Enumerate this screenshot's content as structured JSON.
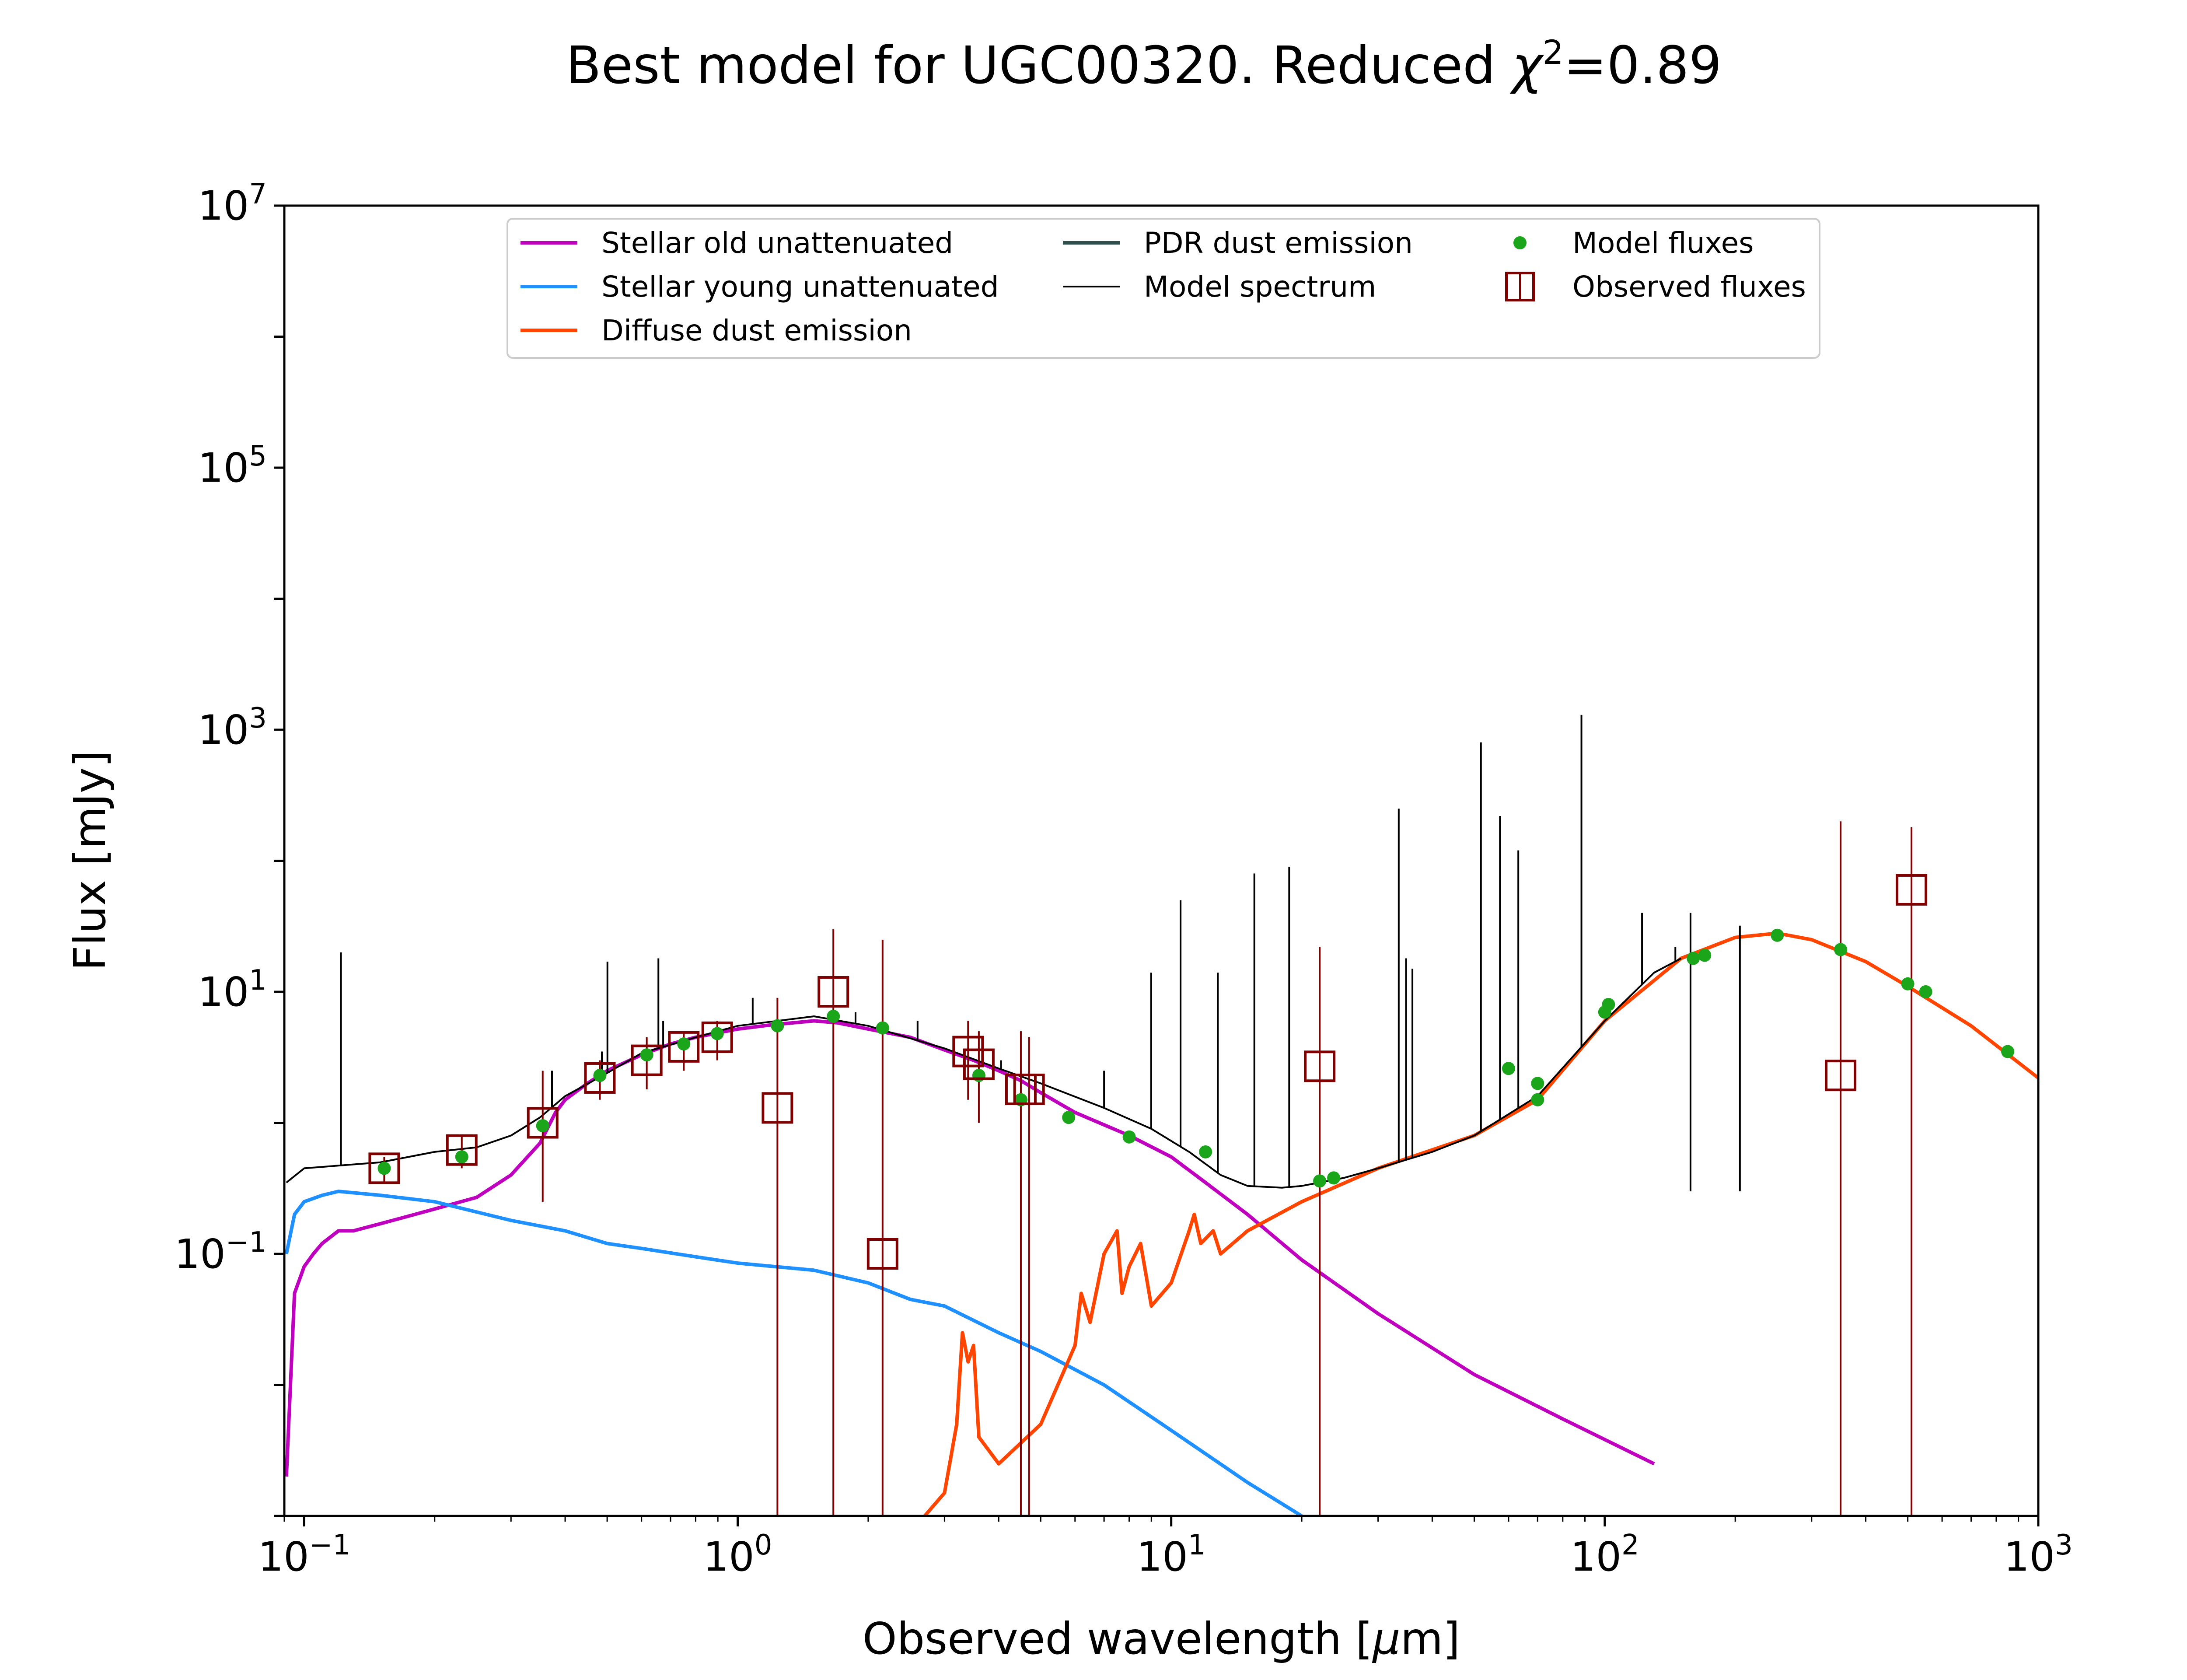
{
  "chart_data": {
    "type": "line",
    "title": "Best model for UGC00320. Reduced χ²=0.89",
    "title_parts": {
      "main": "Best model for UGC00320. Reduced ",
      "chi": "χ",
      "sup": "2",
      "tail": "=0.89"
    },
    "xlabel": "Observed wavelength [μm]",
    "xlabel_parts": {
      "pre": "Observed wavelength [",
      "mu": "μ",
      "post": "m]"
    },
    "ylabel": "Flux [mJy]",
    "xscale": "log",
    "yscale": "log",
    "xlim": [
      0.09,
      1000
    ],
    "ylim": [
      0.001,
      10000000
    ],
    "x_ticks": [
      {
        "base": "10",
        "exp": "−1",
        "value": 0.1
      },
      {
        "base": "10",
        "exp": "0",
        "value": 1
      },
      {
        "base": "10",
        "exp": "1",
        "value": 10
      },
      {
        "base": "10",
        "exp": "2",
        "value": 100
      },
      {
        "base": "10",
        "exp": "3",
        "value": 1000
      }
    ],
    "y_ticks": [
      {
        "base": "10",
        "exp": "−1",
        "value": 0.1
      },
      {
        "base": "10",
        "exp": "1",
        "value": 10
      },
      {
        "base": "10",
        "exp": "3",
        "value": 1000
      },
      {
        "base": "10",
        "exp": "5",
        "value": 100000
      },
      {
        "base": "10",
        "exp": "7",
        "value": 10000000
      }
    ],
    "legend_position": "top-center",
    "legend": [
      {
        "label": "Stellar old unattenuated",
        "color": "#bf00bf",
        "kind": "line"
      },
      {
        "label": "Stellar young unattenuated",
        "color": "#1e90ff",
        "kind": "line"
      },
      {
        "label": "Diffuse dust emission",
        "color": "#ff4500",
        "kind": "line"
      },
      {
        "label": "PDR dust emission",
        "color": "#2f4f4f",
        "kind": "line"
      },
      {
        "label": "Model spectrum",
        "color": "#000000",
        "kind": "thin-line"
      },
      {
        "label": "Model fluxes",
        "color": "#1aa51a",
        "kind": "dot"
      },
      {
        "label": "Observed fluxes",
        "color": "#800000",
        "kind": "square"
      }
    ],
    "series": [
      {
        "name": "Stellar old unattenuated",
        "color": "#bf00bf",
        "x": [
          0.091,
          0.095,
          0.1,
          0.105,
          0.11,
          0.12,
          0.13,
          0.15,
          0.18,
          0.2,
          0.25,
          0.3,
          0.35,
          0.38,
          0.4,
          0.45,
          0.5,
          0.6,
          0.7,
          0.8,
          1.0,
          1.2,
          1.5,
          1.7,
          2.0,
          2.5,
          3.0,
          3.5,
          4.0,
          4.5,
          5.0,
          6.0,
          8.0,
          10.0,
          12.0,
          15.0,
          20.0,
          30.0,
          50.0,
          80.0,
          130.0
        ],
        "y": [
          0.002,
          0.05,
          0.08,
          0.1,
          0.12,
          0.15,
          0.15,
          0.17,
          0.2,
          0.22,
          0.27,
          0.4,
          0.7,
          1.2,
          1.5,
          2.0,
          2.5,
          3.3,
          4.0,
          4.5,
          5.2,
          5.6,
          6.0,
          5.8,
          5.2,
          4.5,
          3.6,
          3.0,
          2.5,
          2.1,
          1.7,
          1.2,
          0.8,
          0.55,
          0.35,
          0.2,
          0.09,
          0.035,
          0.012,
          0.0055,
          0.0025
        ]
      },
      {
        "name": "Stellar young unattenuated",
        "color": "#1e90ff",
        "x": [
          0.091,
          0.095,
          0.1,
          0.11,
          0.12,
          0.15,
          0.2,
          0.3,
          0.4,
          0.5,
          0.6,
          0.8,
          1.0,
          1.5,
          2.0,
          2.5,
          3.0,
          4.0,
          5.0,
          7.0,
          10.0,
          15.0,
          20.0
        ],
        "y": [
          0.1,
          0.2,
          0.25,
          0.28,
          0.3,
          0.28,
          0.25,
          0.18,
          0.15,
          0.12,
          0.11,
          0.095,
          0.085,
          0.075,
          0.06,
          0.045,
          0.04,
          0.025,
          0.018,
          0.01,
          0.0045,
          0.0018,
          0.001
        ]
      },
      {
        "name": "Diffuse dust emission",
        "color": "#ff4500",
        "x": [
          2.7,
          3.0,
          3.2,
          3.3,
          3.4,
          3.5,
          3.6,
          4.0,
          5.0,
          6.0,
          6.2,
          6.5,
          7.0,
          7.5,
          7.7,
          8.0,
          8.5,
          9.0,
          10.0,
          11.0,
          11.3,
          11.7,
          12.5,
          13.0,
          15.0,
          20.0,
          30.0,
          50.0,
          70.0,
          100.0,
          150.0,
          200.0,
          250.0,
          300.0,
          400.0,
          500.0,
          700.0,
          1000.0
        ],
        "y": [
          0.001,
          0.0015,
          0.005,
          0.025,
          0.015,
          0.02,
          0.004,
          0.0025,
          0.005,
          0.02,
          0.05,
          0.03,
          0.1,
          0.15,
          0.05,
          0.08,
          0.12,
          0.04,
          0.06,
          0.15,
          0.2,
          0.12,
          0.15,
          0.1,
          0.15,
          0.25,
          0.45,
          0.8,
          1.5,
          6.0,
          18.0,
          26.0,
          28.0,
          25.0,
          17.0,
          11.0,
          5.5,
          2.2
        ]
      },
      {
        "name": "Model spectrum",
        "color": "#000000",
        "x": [
          0.091,
          0.1,
          0.15,
          0.2,
          0.25,
          0.3,
          0.35,
          0.4,
          0.5,
          0.6,
          0.8,
          1.0,
          1.5,
          2.0,
          3.0,
          4.0,
          5.0,
          7.0,
          9.0,
          11.0,
          13.0,
          15.0,
          18.0,
          20.0,
          25.0,
          30.0,
          40.0,
          50.0,
          70.0,
          100.0,
          130.0,
          150.0
        ],
        "y": [
          0.35,
          0.45,
          0.5,
          0.6,
          0.65,
          0.8,
          1.1,
          1.6,
          2.4,
          3.4,
          4.5,
          5.5,
          6.5,
          5.5,
          3.7,
          2.6,
          2.0,
          1.3,
          0.9,
          0.6,
          0.4,
          0.33,
          0.32,
          0.33,
          0.38,
          0.45,
          0.6,
          0.8,
          1.6,
          6.0,
          14.0,
          18.0
        ],
        "emission_lines": [
          {
            "x": 0.1216,
            "peak": 20
          },
          {
            "x": 0.373,
            "peak": 2.5
          },
          {
            "x": 0.4861,
            "peak": 3.5
          },
          {
            "x": 0.5007,
            "peak": 17
          },
          {
            "x": 0.6563,
            "peak": 18
          },
          {
            "x": 0.6731,
            "peak": 6
          },
          {
            "x": 1.083,
            "peak": 9
          },
          {
            "x": 1.87,
            "peak": 7
          },
          {
            "x": 2.6,
            "peak": 6
          },
          {
            "x": 4.05,
            "peak": 3
          },
          {
            "x": 7.0,
            "peak": 2.5
          },
          {
            "x": 8.99,
            "peak": 14
          },
          {
            "x": 10.51,
            "peak": 50
          },
          {
            "x": 12.81,
            "peak": 14
          },
          {
            "x": 15.55,
            "peak": 80
          },
          {
            "x": 18.71,
            "peak": 90
          },
          {
            "x": 33.48,
            "peak": 250
          },
          {
            "x": 34.81,
            "peak": 18
          },
          {
            "x": 36.0,
            "peak": 15
          },
          {
            "x": 51.81,
            "peak": 800
          },
          {
            "x": 57.32,
            "peak": 220
          },
          {
            "x": 63.18,
            "peak": 120
          },
          {
            "x": 88.36,
            "peak": 1300
          },
          {
            "x": 121.9,
            "peak": 40
          },
          {
            "x": 145.5,
            "peak": 22
          },
          {
            "x": 157.7,
            "peak": 40
          },
          {
            "x": 205.0,
            "peak": 32
          }
        ]
      }
    ],
    "model_fluxes": {
      "name": "Model fluxes",
      "color": "#1aa51a",
      "x": [
        0.153,
        0.231,
        0.355,
        0.481,
        0.617,
        0.751,
        0.897,
        1.235,
        1.662,
        2.159,
        3.6,
        4.5,
        5.8,
        8.0,
        12.0,
        22.0,
        23.7,
        60.0,
        70.0,
        70.0,
        100.0,
        102.0,
        160.0,
        170.0,
        250.0,
        350.0,
        500.0,
        550.0,
        850.0
      ],
      "y": [
        0.45,
        0.55,
        0.95,
        2.3,
        3.3,
        4.0,
        4.8,
        5.5,
        6.5,
        5.3,
        2.3,
        1.5,
        1.1,
        0.78,
        0.6,
        0.36,
        0.38,
        2.6,
        1.5,
        2.0,
        7.0,
        8.0,
        18.0,
        19.0,
        27.0,
        21.0,
        11.5,
        10.0,
        3.5
      ]
    },
    "observed_fluxes": {
      "name": "Observed fluxes",
      "color": "#800000",
      "points": [
        {
          "x": 0.153,
          "y": 0.45,
          "lo": 0.35,
          "hi": 0.55
        },
        {
          "x": 0.231,
          "y": 0.62,
          "lo": 0.45,
          "hi": 0.8
        },
        {
          "x": 0.355,
          "y": 1.0,
          "lo": 0.25,
          "hi": 2.5
        },
        {
          "x": 0.481,
          "y": 2.2,
          "lo": 1.5,
          "hi": 3.0
        },
        {
          "x": 0.617,
          "y": 3.0,
          "lo": 1.8,
          "hi": 4.5
        },
        {
          "x": 0.751,
          "y": 3.8,
          "lo": 2.5,
          "hi": 5.0
        },
        {
          "x": 0.897,
          "y": 4.5,
          "lo": 3.0,
          "hi": 6.0
        },
        {
          "x": 1.235,
          "y": 1.3,
          "lo": 0.001,
          "hi": 9.0
        },
        {
          "x": 1.662,
          "y": 10.0,
          "lo": 0.001,
          "hi": 30.0
        },
        {
          "x": 2.159,
          "y": 0.1,
          "lo": 0.001,
          "hi": 25.0
        },
        {
          "x": 3.4,
          "y": 3.5,
          "lo": 1.5,
          "hi": 6.0
        },
        {
          "x": 3.6,
          "y": 2.8,
          "lo": 1.0,
          "hi": 5.0
        },
        {
          "x": 4.5,
          "y": 1.8,
          "lo": 0.001,
          "hi": 5.0
        },
        {
          "x": 4.7,
          "y": 1.8,
          "lo": 0.001,
          "hi": 4.5
        },
        {
          "x": 22.0,
          "y": 2.7,
          "lo": 0.001,
          "hi": 22.0
        },
        {
          "x": 350.0,
          "y": 2.3,
          "lo": 0.001,
          "hi": 200.0
        },
        {
          "x": 510.0,
          "y": 60.0,
          "lo": 0.001,
          "hi": 180.0
        }
      ]
    }
  }
}
